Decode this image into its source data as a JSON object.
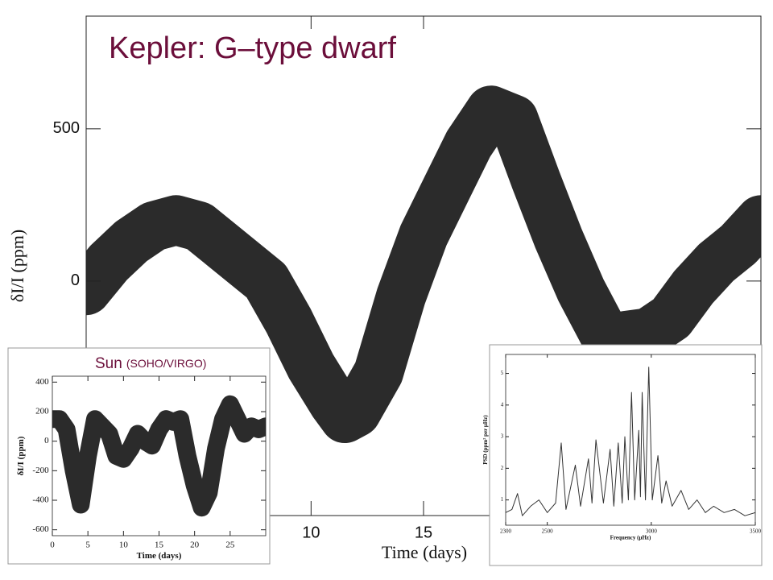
{
  "chart_data": [
    {
      "type": "line",
      "title": "Kepler: G–type dwarf",
      "xlabel": "Time (days)",
      "ylabel": "δI/I (ppm)",
      "color": "#2b2b2b",
      "x": [
        0,
        1,
        2,
        3,
        4,
        5,
        6,
        7,
        8,
        9,
        10,
        11,
        11.5,
        12,
        13,
        14,
        15,
        16,
        17,
        18,
        19,
        20,
        21,
        22,
        23,
        23.5,
        24,
        25,
        26,
        27,
        28,
        29,
        30
      ],
      "values": [
        -30,
        60,
        130,
        180,
        200,
        180,
        120,
        60,
        0,
        -130,
        -280,
        -400,
        -450,
        -430,
        -300,
        -50,
        150,
        300,
        450,
        560,
        530,
        330,
        140,
        -30,
        -170,
        null,
        -180,
        -170,
        -120,
        -20,
        60,
        120,
        200
      ],
      "xlim": [
        0,
        30
      ],
      "ylim": [
        -770,
        870
      ],
      "xticks": [
        10,
        15
      ],
      "yticks": [
        0,
        500
      ]
    },
    {
      "type": "line",
      "title": "Sun",
      "subtitle": "(SOHO/VIRGO)",
      "xlabel": "Time (days)",
      "ylabel": "δI/I (ppm)",
      "color": "#2b2b2b",
      "x": [
        0,
        1,
        2,
        3,
        4,
        5,
        6,
        7,
        8,
        9,
        10,
        11,
        12,
        13,
        14,
        15,
        16,
        17,
        18,
        19,
        20,
        21,
        22,
        23,
        24,
        25,
        26,
        27,
        28,
        29,
        30
      ],
      "values": [
        150,
        150,
        80,
        -200,
        -430,
        -100,
        150,
        100,
        50,
        -100,
        -120,
        -50,
        50,
        0,
        -30,
        80,
        150,
        130,
        150,
        -100,
        -300,
        -450,
        -350,
        -50,
        150,
        250,
        150,
        50,
        100,
        80,
        100
      ],
      "xlim": [
        0,
        30
      ],
      "ylim": [
        -640,
        440
      ],
      "xticks": [
        0,
        5,
        10,
        15,
        20,
        25
      ],
      "yticks": [
        -600,
        -400,
        -200,
        0,
        200,
        400
      ]
    },
    {
      "type": "line",
      "xlabel": "Frequency (μHz)",
      "ylabel": "PSD (ppm² per μHz)",
      "color": "#333333",
      "x": [
        2300,
        2330,
        2357,
        2380,
        2420,
        2460,
        2500,
        2540,
        2567,
        2590,
        2635,
        2660,
        2698,
        2715,
        2734,
        2770,
        2802,
        2820,
        2841,
        2860,
        2873,
        2890,
        2905,
        2920,
        2940,
        2948,
        2956,
        2972,
        2988,
        3005,
        3032,
        3050,
        3071,
        3100,
        3143,
        3180,
        3220,
        3260,
        3300,
        3350,
        3400,
        3450,
        3500
      ],
      "values": [
        0.6,
        0.7,
        1.2,
        0.5,
        0.8,
        1.0,
        0.6,
        0.9,
        2.8,
        0.7,
        2.1,
        0.8,
        2.3,
        0.9,
        2.9,
        0.9,
        2.6,
        0.8,
        2.8,
        0.9,
        3.0,
        1.0,
        4.4,
        1.0,
        3.2,
        1.1,
        4.4,
        1.0,
        5.2,
        1.0,
        2.4,
        0.9,
        1.6,
        0.8,
        1.3,
        0.7,
        1.0,
        0.6,
        0.8,
        0.6,
        0.7,
        0.5,
        0.6
      ],
      "xlim": [
        2300,
        3500
      ],
      "ylim": [
        0.2,
        5.6
      ],
      "xticks": [
        2300,
        2500,
        3000,
        3500
      ],
      "yticks": [
        1,
        2,
        3,
        4,
        5
      ]
    }
  ]
}
